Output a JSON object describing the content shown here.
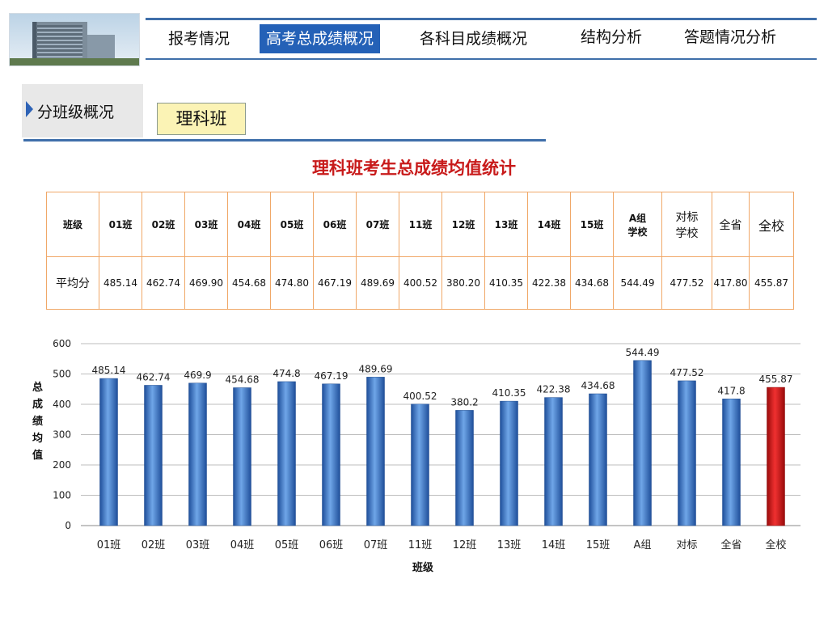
{
  "nav": {
    "items": [
      "报考情况",
      "高考总成绩概况",
      "各科目成绩概况",
      "结构分析",
      "答题情况分析"
    ],
    "active_index": 1
  },
  "section": {
    "label": "分班级概况",
    "tag": "理科班"
  },
  "title": "理科班考生总成绩均值统计",
  "table": {
    "header_label": "班级",
    "columns": [
      "01班",
      "02班",
      "03班",
      "04班",
      "05班",
      "06班",
      "07班",
      "11班",
      "12班",
      "13班",
      "14班",
      "15班",
      "A组学校",
      "对标学校",
      "全省",
      "全校"
    ],
    "row_label": "平均分",
    "values": [
      "485.14",
      "462.74",
      "469.90",
      "454.68",
      "474.80",
      "467.19",
      "489.69",
      "400.52",
      "380.20",
      "410.35",
      "422.38",
      "434.68",
      "544.49",
      "477.52",
      "417.80",
      "455.87"
    ]
  },
  "chart_data": {
    "type": "bar",
    "categories": [
      "01班",
      "02班",
      "03班",
      "04班",
      "05班",
      "06班",
      "07班",
      "11班",
      "12班",
      "13班",
      "14班",
      "15班",
      "A组",
      "对标",
      "全省",
      "全校"
    ],
    "values": [
      485.14,
      462.74,
      469.9,
      454.68,
      474.8,
      467.19,
      489.69,
      400.52,
      380.2,
      410.35,
      422.38,
      434.68,
      544.49,
      477.52,
      417.8,
      455.87
    ],
    "xlabel": "班级",
    "ylabel": "总成绩均值",
    "ylim": [
      0,
      600
    ],
    "yticks": [
      0,
      100,
      200,
      300,
      400,
      500,
      600
    ],
    "grid": true,
    "bar_color": "#2f6fbf",
    "highlight_color": "#c81414",
    "highlight_category": "全校"
  }
}
